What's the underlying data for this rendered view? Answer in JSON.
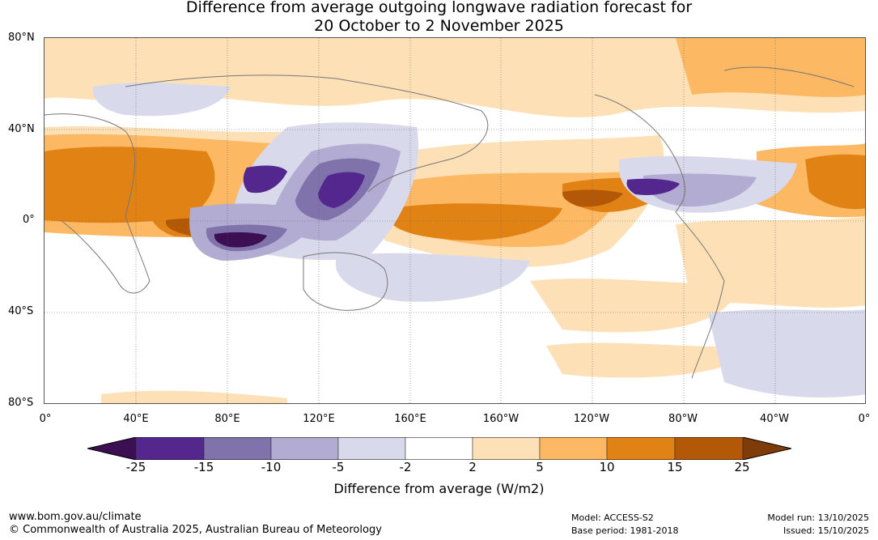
{
  "title": {
    "line1": "Difference from average outgoing longwave radiation forecast for",
    "line2": "20 October to 2 November 2025"
  },
  "lat_labels": [
    "80°N",
    "40°N",
    "0°",
    "40°S",
    "80°S"
  ],
  "lon_labels": [
    "0°",
    "40°E",
    "80°E",
    "120°E",
    "160°E",
    "160°W",
    "120°W",
    "80°W",
    "40°W",
    "0°"
  ],
  "legend": {
    "title": "Difference from average (W/m2)",
    "ticks": [
      "-25",
      "-15",
      "-10",
      "-5",
      "-2",
      "2",
      "5",
      "10",
      "15",
      "25"
    ],
    "colors": [
      "#3b0f52",
      "#54278f",
      "#8073ac",
      "#b2abd2",
      "#d8daeb",
      "#ffffff",
      "#fee0b6",
      "#fdb863",
      "#e08214",
      "#b35806",
      "#7f3b08"
    ]
  },
  "footer": {
    "url": "www.bom.gov.au/climate",
    "copyright": "© Commonwealth of Australia 2025, Australian Bureau of Meteorology",
    "model": "Model: ACCESS-S2",
    "base_period": "Base period: 1981-2018",
    "model_run": "Model run: 13/10/2025",
    "issued": "Issued: 15/10/2025"
  }
}
